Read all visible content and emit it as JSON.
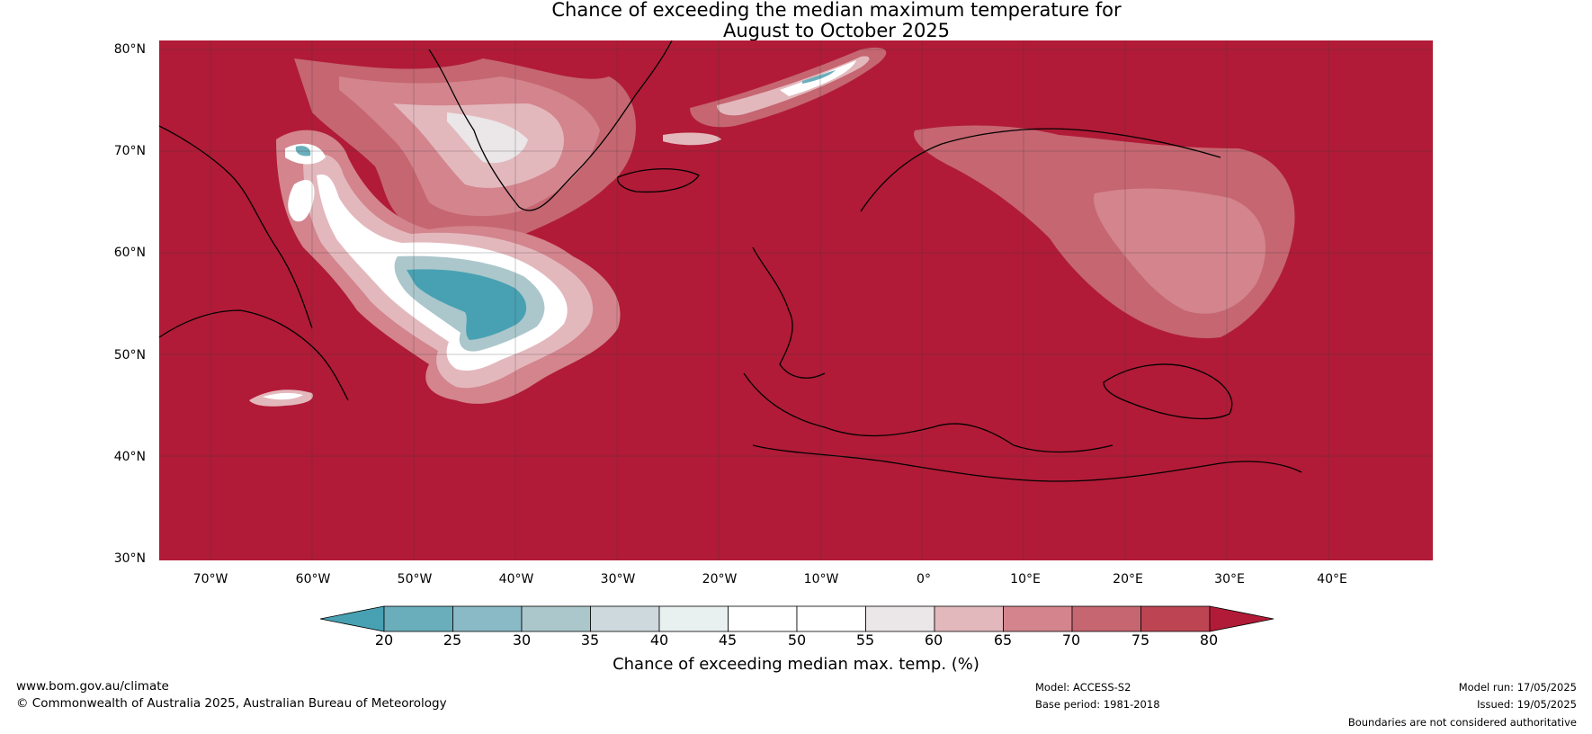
{
  "title": {
    "line1": "Chance of exceeding the median maximum temperature for",
    "line2": "August to October 2025"
  },
  "map": {
    "latitude_labels": [
      "80°N",
      "70°N",
      "60°N",
      "50°N",
      "40°N",
      "30°N"
    ],
    "longitude_labels": [
      "70°W",
      "60°W",
      "50°W",
      "40°W",
      "30°W",
      "20°W",
      "10°W",
      "0°",
      "10°E",
      "20°E",
      "30°E",
      "40°E"
    ],
    "colors": {
      "background_80_plus": "#b11b37",
      "coastline": "#000000",
      "border": "#808080",
      "gridline": "#3a3a3a"
    }
  },
  "colorbar": {
    "ticks": [
      "20",
      "25",
      "30",
      "35",
      "40",
      "45",
      "50",
      "55",
      "60",
      "65",
      "70",
      "75",
      "80"
    ],
    "label": "Chance of exceeding median max. temp. (%)",
    "colors": [
      "#48a1b2",
      "#6aaebc",
      "#8abac5",
      "#abc7cc",
      "#cdd9dc",
      "#e9f0f0",
      "#ffffff",
      "#ffffff",
      "#ebe6e7",
      "#e3b8bd",
      "#d3848d",
      "#c56671",
      "#bd4553",
      "#b11b37"
    ]
  },
  "footer": {
    "website": "www.bom.gov.au/climate",
    "copyright": "© Commonwealth of Australia 2025, Australian Bureau of Meteorology",
    "model": "Model: ACCESS-S2",
    "base_period": "Base period: 1981-2018",
    "model_run": "Model run: 17/05/2025",
    "issued": "Issued: 19/05/2025",
    "disclaimer": "Boundaries are not considered authoritative"
  }
}
